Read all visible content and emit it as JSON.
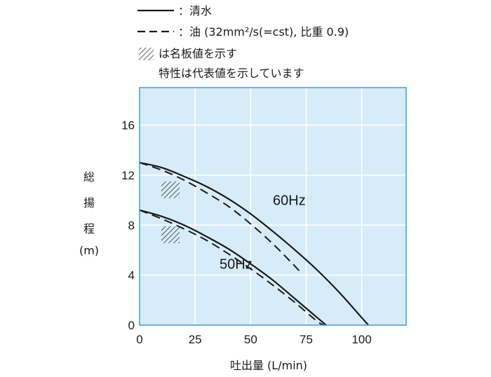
{
  "chart_data": {
    "type": "line",
    "xlabel": "吐出量 (L/min)",
    "ylabel_chars": [
      "総",
      "揚",
      "程",
      "(m)"
    ],
    "xlim": [
      0,
      120
    ],
    "ylim": [
      0,
      19
    ],
    "x_ticks": [
      0,
      25,
      50,
      75,
      100
    ],
    "y_ticks": [
      0,
      4,
      8,
      12,
      16
    ],
    "grid": true,
    "legend": {
      "solid_text": "：清水",
      "dashed_text": "：油 (32mm²/s(=cst), 比重 0.9)",
      "hatch_text_1": "は名板値を示す",
      "hatch_text_2": "特性は代表値を示しています"
    },
    "series": [
      {
        "label": "60Hz",
        "style": "solid",
        "x": [
          0,
          10,
          20,
          30,
          40,
          50,
          60,
          70,
          80,
          90,
          100,
          103
        ],
        "y": [
          13.0,
          12.6,
          11.9,
          11.1,
          10.1,
          8.9,
          7.5,
          6.0,
          4.4,
          2.6,
          0.6,
          0
        ]
      },
      {
        "label": "60Hz",
        "style": "dashed",
        "x": [
          0,
          10,
          20,
          30,
          40,
          50,
          60,
          70,
          73
        ],
        "y": [
          13.0,
          12.4,
          11.6,
          10.6,
          9.5,
          8.1,
          6.5,
          4.7,
          4.1
        ]
      },
      {
        "label": "50Hz",
        "style": "solid",
        "x": [
          0,
          10,
          20,
          30,
          40,
          50,
          60,
          70,
          80,
          84
        ],
        "y": [
          9.2,
          8.7,
          8.0,
          7.1,
          6.1,
          4.9,
          3.6,
          2.1,
          0.6,
          0
        ]
      },
      {
        "label": "50Hz",
        "style": "dashed",
        "x": [
          0,
          10,
          20,
          30,
          40,
          50,
          60,
          70,
          80,
          83
        ],
        "y": [
          9.2,
          8.5,
          7.7,
          6.8,
          5.7,
          4.5,
          3.2,
          1.8,
          0.3,
          0
        ]
      }
    ],
    "rated_points": [
      {
        "x": 18,
        "y": 11.5
      },
      {
        "x": 18,
        "y": 7.9
      }
    ],
    "colors": {
      "plot_background": "#d6ecf8",
      "grid": "#ffffff",
      "frame": "#3aa0d8",
      "line": "#1a1a1a"
    }
  }
}
